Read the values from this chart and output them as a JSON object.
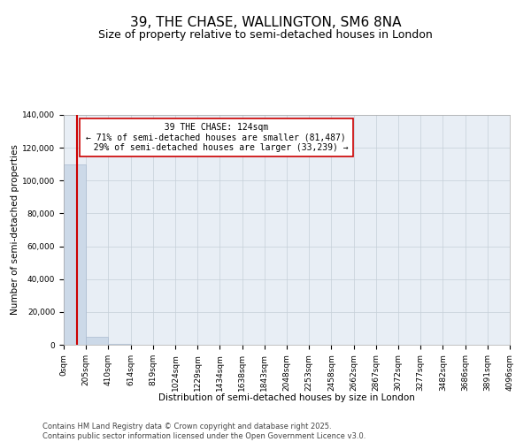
{
  "title": "39, THE CHASE, WALLINGTON, SM6 8NA",
  "subtitle": "Size of property relative to semi-detached houses in London",
  "xlabel": "Distribution of semi-detached houses by size in London",
  "ylabel": "Number of semi-detached properties",
  "property_size": 124,
  "property_label": "39 THE CHASE: 124sqm",
  "pct_smaller": 71,
  "pct_larger": 29,
  "n_smaller": 81487,
  "n_larger": 33239,
  "bar_color": "#ccd9e8",
  "bar_edge_color": "#aabbd0",
  "vline_color": "#cc0000",
  "background_color": "#ffffff",
  "plot_bg_color": "#e8eef5",
  "grid_color": "#c5cfd8",
  "bin_edges": [
    0,
    205,
    410,
    614,
    819,
    1024,
    1229,
    1434,
    1638,
    1843,
    2048,
    2253,
    2458,
    2662,
    2867,
    3072,
    3277,
    3482,
    3686,
    3891,
    4096
  ],
  "bin_labels": [
    "0sqm",
    "205sqm",
    "410sqm",
    "614sqm",
    "819sqm",
    "1024sqm",
    "1229sqm",
    "1434sqm",
    "1638sqm",
    "1843sqm",
    "2048sqm",
    "2253sqm",
    "2458sqm",
    "2662sqm",
    "2867sqm",
    "3072sqm",
    "3277sqm",
    "3482sqm",
    "3686sqm",
    "3891sqm",
    "4096sqm"
  ],
  "bar_heights": [
    110000,
    5000,
    600,
    80,
    20,
    8,
    4,
    2,
    1,
    1,
    0,
    0,
    0,
    0,
    0,
    0,
    0,
    0,
    0,
    0
  ],
  "ylim": [
    0,
    140000
  ],
  "yticks": [
    0,
    20000,
    40000,
    60000,
    80000,
    100000,
    120000,
    140000
  ],
  "footer_line1": "Contains HM Land Registry data © Crown copyright and database right 2025.",
  "footer_line2": "Contains public sector information licensed under the Open Government Licence v3.0.",
  "title_fontsize": 11,
  "subtitle_fontsize": 9,
  "axis_label_fontsize": 7.5,
  "tick_fontsize": 6.5,
  "annotation_fontsize": 7,
  "footer_fontsize": 6
}
